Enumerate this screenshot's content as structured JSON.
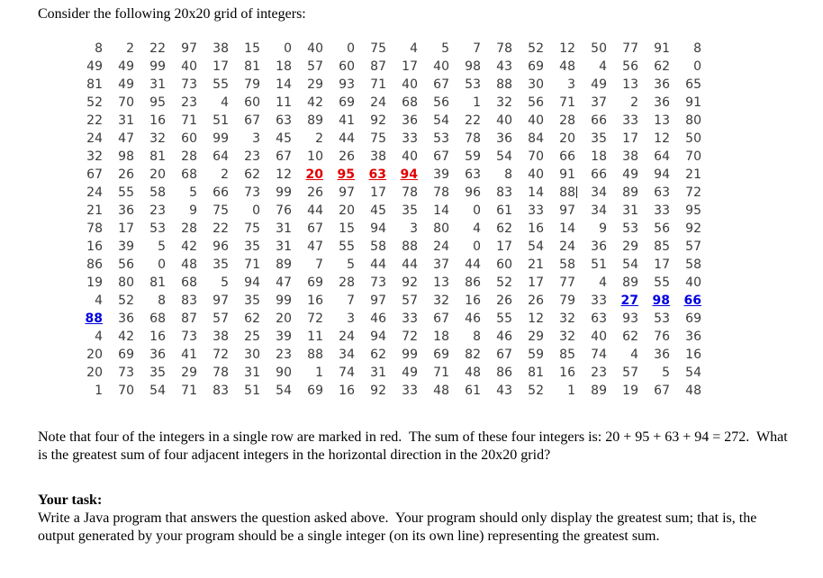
{
  "document": {
    "intro": "Consider the following 20x20 grid of integers:",
    "note": "Note that four of the integers in a single row are marked in red.  The sum of these four integers is: 20 + 95 + 63 + 94 = 272.  What is the greatest sum of four adjacent integers in the horizontal direction in the 20x20 grid?",
    "task_heading": "Your task:",
    "task_body": "Write a Java program that answers the question asked above.  Your program should only display the greatest sum; that is, the output generated by your program should be a single integer (on its own line) representing the greatest sum."
  },
  "grid": {
    "rows": [
      [
        8,
        2,
        22,
        97,
        38,
        15,
        0,
        40,
        0,
        75,
        4,
        5,
        7,
        78,
        52,
        12,
        50,
        77,
        91,
        8
      ],
      [
        49,
        49,
        99,
        40,
        17,
        81,
        18,
        57,
        60,
        87,
        17,
        40,
        98,
        43,
        69,
        48,
        4,
        56,
        62,
        0
      ],
      [
        81,
        49,
        31,
        73,
        55,
        79,
        14,
        29,
        93,
        71,
        40,
        67,
        53,
        88,
        30,
        3,
        49,
        13,
        36,
        65
      ],
      [
        52,
        70,
        95,
        23,
        4,
        60,
        11,
        42,
        69,
        24,
        68,
        56,
        1,
        32,
        56,
        71,
        37,
        2,
        36,
        91
      ],
      [
        22,
        31,
        16,
        71,
        51,
        67,
        63,
        89,
        41,
        92,
        36,
        54,
        22,
        40,
        40,
        28,
        66,
        33,
        13,
        80
      ],
      [
        24,
        47,
        32,
        60,
        99,
        3,
        45,
        2,
        44,
        75,
        33,
        53,
        78,
        36,
        84,
        20,
        35,
        17,
        12,
        50
      ],
      [
        32,
        98,
        81,
        28,
        64,
        23,
        67,
        10,
        26,
        38,
        40,
        67,
        59,
        54,
        70,
        66,
        18,
        38,
        64,
        70
      ],
      [
        67,
        26,
        20,
        68,
        2,
        62,
        12,
        20,
        95,
        63,
        94,
        39,
        63,
        8,
        40,
        91,
        66,
        49,
        94,
        21
      ],
      [
        24,
        55,
        58,
        5,
        66,
        73,
        99,
        26,
        97,
        17,
        78,
        78,
        96,
        83,
        14,
        88,
        34,
        89,
        63,
        72
      ],
      [
        21,
        36,
        23,
        9,
        75,
        0,
        76,
        44,
        20,
        45,
        35,
        14,
        0,
        61,
        33,
        97,
        34,
        31,
        33,
        95
      ],
      [
        78,
        17,
        53,
        28,
        22,
        75,
        31,
        67,
        15,
        94,
        3,
        80,
        4,
        62,
        16,
        14,
        9,
        53,
        56,
        92
      ],
      [
        16,
        39,
        5,
        42,
        96,
        35,
        31,
        47,
        55,
        58,
        88,
        24,
        0,
        17,
        54,
        24,
        36,
        29,
        85,
        57
      ],
      [
        86,
        56,
        0,
        48,
        35,
        71,
        89,
        7,
        5,
        44,
        44,
        37,
        44,
        60,
        21,
        58,
        51,
        54,
        17,
        58
      ],
      [
        19,
        80,
        81,
        68,
        5,
        94,
        47,
        69,
        28,
        73,
        92,
        13,
        86,
        52,
        17,
        77,
        4,
        89,
        55,
        40
      ],
      [
        4,
        52,
        8,
        83,
        97,
        35,
        99,
        16,
        7,
        97,
        57,
        32,
        16,
        26,
        26,
        79,
        33,
        27,
        98,
        66
      ],
      [
        88,
        36,
        68,
        87,
        57,
        62,
        20,
        72,
        3,
        46,
        33,
        67,
        46,
        55,
        12,
        32,
        63,
        93,
        53,
        69
      ],
      [
        4,
        42,
        16,
        73,
        38,
        25,
        39,
        11,
        24,
        94,
        72,
        18,
        8,
        46,
        29,
        32,
        40,
        62,
        76,
        36
      ],
      [
        20,
        69,
        36,
        41,
        72,
        30,
        23,
        88,
        34,
        62,
        99,
        69,
        82,
        67,
        59,
        85,
        74,
        4,
        36,
        16
      ],
      [
        20,
        73,
        35,
        29,
        78,
        31,
        90,
        1,
        74,
        31,
        49,
        71,
        48,
        86,
        81,
        16,
        23,
        57,
        5,
        54
      ],
      [
        1,
        70,
        54,
        71,
        83,
        51,
        54,
        69,
        16,
        92,
        33,
        48,
        61,
        43,
        52,
        1,
        89,
        19,
        67,
        48
      ]
    ],
    "highlights": {
      "red": [
        {
          "row": 7,
          "cols": [
            7,
            8,
            9,
            10
          ]
        }
      ],
      "blue": [
        {
          "row": 14,
          "cols": [
            17,
            18,
            19
          ]
        },
        {
          "row": 15,
          "cols": [
            0
          ]
        }
      ]
    },
    "caret": {
      "row": 8,
      "col": 15
    },
    "colors": {
      "red": "#e00000",
      "blue": "#0000e0",
      "normal": "#3a3a3a"
    }
  }
}
